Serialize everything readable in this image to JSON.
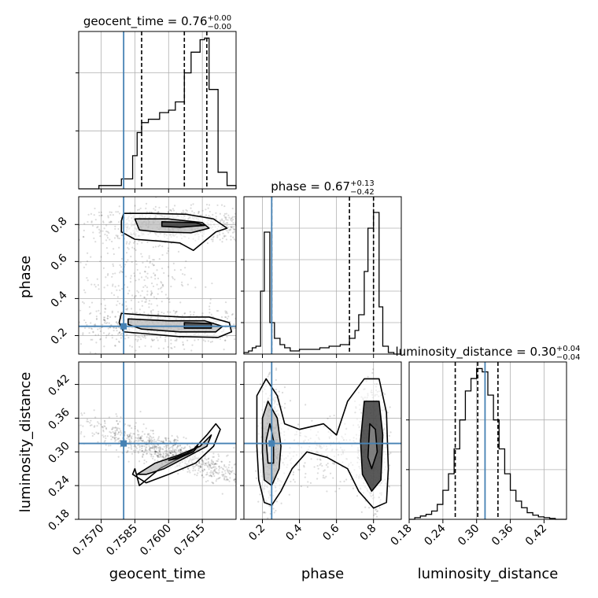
{
  "chart_data": {
    "type": "corner",
    "parameters": [
      "geocent_time",
      "phase",
      "luminosity_distance"
    ],
    "truth": {
      "geocent_time": 0.758,
      "phase": 0.25,
      "luminosity_distance": 0.315
    },
    "colors": {
      "truth": "#4682b4",
      "hist": "#000000",
      "grid": "#b0b0b0",
      "scatter": "#000000"
    },
    "grid": true,
    "marginals": [
      {
        "parameter": "geocent_time",
        "title_prefix": "geocent_time = ",
        "median": "0.76",
        "plus": "+0.00",
        "minus": "−0.00",
        "quantiles": [
          0.7588,
          0.7607,
          0.7617
        ],
        "xlim": [
          0.756,
          0.763
        ],
        "ylim": [
          0,
          190
        ],
        "yticks": [
          70,
          140
        ],
        "bin_edges": [
          0.756,
          0.7569,
          0.7579,
          0.7584,
          0.7586,
          0.7588,
          0.7591,
          0.7596,
          0.76,
          0.7603,
          0.7607,
          0.761,
          0.7614,
          0.7616,
          0.7618,
          0.7622,
          0.7626,
          0.763
        ],
        "counts": [
          0,
          4,
          12,
          40,
          68,
          80,
          84,
          92,
          95,
          105,
          140,
          165,
          180,
          182,
          120,
          20,
          4
        ]
      },
      {
        "parameter": "phase",
        "title_prefix": "phase = ",
        "median": "0.67",
        "plus": "+0.13",
        "minus": "−0.42",
        "quantiles": [
          0.25,
          0.67,
          0.8
        ],
        "xlim": [
          0.1,
          0.95
        ],
        "ylim": [
          0,
          200
        ],
        "yticks": [
          40,
          80,
          120,
          160
        ],
        "bin_edges": [
          0.1,
          0.125,
          0.145,
          0.165,
          0.19,
          0.21,
          0.24,
          0.265,
          0.295,
          0.32,
          0.35,
          0.375,
          0.4,
          0.43,
          0.455,
          0.48,
          0.51,
          0.54,
          0.56,
          0.59,
          0.62,
          0.65,
          0.67,
          0.7,
          0.72,
          0.75,
          0.77,
          0.8,
          0.83,
          0.85,
          0.88,
          0.91,
          0.95
        ],
        "counts": [
          2,
          4,
          8,
          10,
          80,
          155,
          40,
          20,
          12,
          8,
          4,
          4,
          6,
          6,
          6,
          6,
          8,
          8,
          10,
          10,
          12,
          12,
          20,
          30,
          50,
          105,
          160,
          180,
          60,
          10,
          2,
          0
        ]
      },
      {
        "parameter": "luminosity_distance",
        "title_prefix": "luminosity_distance = ",
        "median": "0.30",
        "plus": "+0.04",
        "minus": "−0.04",
        "quantiles": [
          0.262,
          0.302,
          0.338
        ],
        "xlim": [
          0.18,
          0.46
        ],
        "ylim": [
          0,
          190
        ],
        "yticks": [
          60,
          120
        ],
        "bin_edges": [
          0.18,
          0.19,
          0.2,
          0.21,
          0.22,
          0.23,
          0.24,
          0.25,
          0.26,
          0.27,
          0.28,
          0.29,
          0.3,
          0.31,
          0.32,
          0.33,
          0.34,
          0.35,
          0.36,
          0.37,
          0.38,
          0.39,
          0.4,
          0.41,
          0.42,
          0.43,
          0.44,
          0.45,
          0.46
        ],
        "counts": [
          0,
          2,
          4,
          6,
          10,
          18,
          35,
          55,
          85,
          120,
          155,
          170,
          182,
          178,
          150,
          120,
          85,
          55,
          35,
          22,
          14,
          8,
          5,
          3,
          2,
          1,
          0,
          0
        ]
      }
    ],
    "axes": {
      "geocent_time": {
        "label": "geocent_time",
        "lim": [
          0.756,
          0.763
        ],
        "ticks": [
          0.757,
          0.7585,
          0.76,
          0.7615
        ],
        "ticklabels": [
          "0.7570",
          "0.7585",
          "0.7600",
          "0.7615"
        ]
      },
      "phase": {
        "label": "phase",
        "lim": [
          0.1,
          0.95
        ],
        "ticks": [
          0.2,
          0.4,
          0.6,
          0.8
        ],
        "ticklabels": [
          "0.2",
          "0.4",
          "0.6",
          "0.8"
        ]
      },
      "luminosity_distance": {
        "label": "luminosity_distance",
        "lim": [
          0.18,
          0.46
        ],
        "ticks": [
          0.18,
          0.24,
          0.3,
          0.36,
          0.42
        ],
        "ticklabels": [
          "0.18",
          "0.24",
          "0.30",
          "0.36",
          "0.42"
        ]
      }
    },
    "y_axes": {
      "phase": {
        "label": "phase",
        "lim": [
          0.1,
          0.95
        ],
        "ticks": [
          0.2,
          0.4,
          0.6,
          0.8
        ],
        "ticklabels": [
          "0.2",
          "0.4",
          "0.6",
          "0.8"
        ]
      },
      "luminosity_distance": {
        "label": "luminosity_distance",
        "lim": [
          0.18,
          0.46
        ],
        "ticks": [
          0.18,
          0.24,
          0.3,
          0.36,
          0.42
        ],
        "ticklabels": [
          "0.18",
          "0.24",
          "0.30",
          "0.36",
          "0.42"
        ]
      }
    },
    "joint": [
      {
        "x": "geocent_time",
        "y": "phase",
        "blobs": [
          {
            "cx": 0.7604,
            "cy": 0.8,
            "sx": 0.0022,
            "sy": 0.045,
            "w": 800,
            "rot": 0
          },
          {
            "cx": 0.7598,
            "cy": 0.25,
            "sx": 0.0024,
            "sy": 0.05,
            "w": 700,
            "rot": 0
          },
          {
            "cx": 0.7585,
            "cy": 0.52,
            "sx": 0.0012,
            "sy": 0.14,
            "w": 250,
            "rot": 0
          }
        ],
        "contours": [
          [
            [
              0.758,
              0.86
            ],
            [
              0.7592,
              0.86
            ],
            [
              0.7608,
              0.855
            ],
            [
              0.762,
              0.83
            ],
            [
              0.7626,
              0.78
            ],
            [
              0.7621,
              0.76
            ],
            [
              0.7617,
              0.72
            ],
            [
              0.7611,
              0.66
            ],
            [
              0.7605,
              0.7
            ],
            [
              0.7596,
              0.71
            ],
            [
              0.7585,
              0.72
            ],
            [
              0.7579,
              0.76
            ],
            [
              0.7579,
              0.82
            ]
          ],
          [
            [
              0.7585,
              0.83
            ],
            [
              0.76,
              0.83
            ],
            [
              0.7615,
              0.81
            ],
            [
              0.7618,
              0.78
            ],
            [
              0.761,
              0.755
            ],
            [
              0.7595,
              0.76
            ],
            [
              0.7587,
              0.77
            ]
          ],
          [
            [
              0.7597,
              0.815
            ],
            [
              0.7612,
              0.81
            ],
            [
              0.7616,
              0.795
            ],
            [
              0.7605,
              0.785
            ],
            [
              0.7597,
              0.79
            ]
          ],
          [
            [
              0.7579,
              0.32
            ],
            [
              0.759,
              0.31
            ],
            [
              0.7606,
              0.3
            ],
            [
              0.7618,
              0.3
            ],
            [
              0.7627,
              0.27
            ],
            [
              0.7628,
              0.22
            ],
            [
              0.7622,
              0.19
            ],
            [
              0.7604,
              0.195
            ],
            [
              0.759,
              0.21
            ],
            [
              0.758,
              0.22
            ],
            [
              0.7578,
              0.27
            ]
          ],
          [
            [
              0.7582,
              0.29
            ],
            [
              0.76,
              0.28
            ],
            [
              0.7616,
              0.28
            ],
            [
              0.7624,
              0.25
            ],
            [
              0.7621,
              0.22
            ],
            [
              0.7605,
              0.22
            ],
            [
              0.7588,
              0.235
            ],
            [
              0.7582,
              0.26
            ]
          ],
          [
            [
              0.7607,
              0.27
            ],
            [
              0.7619,
              0.265
            ],
            [
              0.7619,
              0.24
            ],
            [
              0.7607,
              0.24
            ]
          ]
        ]
      },
      {
        "x": "geocent_time",
        "y": "luminosity_distance",
        "blobs": [
          {
            "cx": 0.76,
            "cy": 0.3,
            "sx": 0.0014,
            "sy": 0.014,
            "w": 900,
            "rot": -55
          }
        ],
        "contours": [
          [
            [
              0.7587,
              0.24
            ],
            [
              0.7596,
              0.27
            ],
            [
              0.761,
              0.3
            ],
            [
              0.7617,
              0.33
            ],
            [
              0.7621,
              0.35
            ],
            [
              0.7623,
              0.34
            ],
            [
              0.762,
              0.31
            ],
            [
              0.7612,
              0.28
            ],
            [
              0.76,
              0.26
            ],
            [
              0.759,
              0.245
            ],
            [
              0.7584,
              0.26
            ],
            [
              0.7585,
              0.27
            ]
          ],
          [
            [
              0.7586,
              0.26
            ],
            [
              0.7594,
              0.28
            ],
            [
              0.7605,
              0.295
            ],
            [
              0.7614,
              0.31
            ],
            [
              0.7619,
              0.33
            ],
            [
              0.7617,
              0.31
            ],
            [
              0.761,
              0.295
            ],
            [
              0.7598,
              0.27
            ],
            [
              0.759,
              0.26
            ]
          ],
          [
            [
              0.76,
              0.285
            ],
            [
              0.7608,
              0.297
            ],
            [
              0.7613,
              0.31
            ],
            [
              0.7611,
              0.3
            ],
            [
              0.7604,
              0.288
            ]
          ]
        ]
      },
      {
        "x": "phase",
        "y": "luminosity_distance",
        "blobs": [
          {
            "cx": 0.25,
            "cy": 0.31,
            "sx": 0.03,
            "sy": 0.05,
            "w": 600,
            "rot": 0
          },
          {
            "cx": 0.79,
            "cy": 0.31,
            "sx": 0.04,
            "sy": 0.05,
            "w": 700,
            "rot": 0
          },
          {
            "cx": 0.5,
            "cy": 0.3,
            "sx": 0.12,
            "sy": 0.03,
            "w": 200,
            "rot": 0
          }
        ],
        "contours": [
          [
            [
              0.22,
              0.43
            ],
            [
              0.28,
              0.4
            ],
            [
              0.32,
              0.35
            ],
            [
              0.4,
              0.34
            ],
            [
              0.53,
              0.35
            ],
            [
              0.6,
              0.33
            ],
            [
              0.66,
              0.39
            ],
            [
              0.75,
              0.43
            ],
            [
              0.83,
              0.43
            ],
            [
              0.87,
              0.37
            ],
            [
              0.88,
              0.27
            ],
            [
              0.87,
              0.21
            ],
            [
              0.8,
              0.2
            ],
            [
              0.72,
              0.23
            ],
            [
              0.66,
              0.27
            ],
            [
              0.55,
              0.29
            ],
            [
              0.44,
              0.3
            ],
            [
              0.36,
              0.27
            ],
            [
              0.3,
              0.23
            ],
            [
              0.25,
              0.205
            ],
            [
              0.21,
              0.21
            ],
            [
              0.18,
              0.25
            ],
            [
              0.17,
              0.31
            ],
            [
              0.17,
              0.4
            ]
          ],
          [
            [
              0.23,
              0.39
            ],
            [
              0.28,
              0.36
            ],
            [
              0.3,
              0.31
            ],
            [
              0.29,
              0.27
            ],
            [
              0.25,
              0.24
            ],
            [
              0.21,
              0.25
            ],
            [
              0.2,
              0.3
            ],
            [
              0.2,
              0.36
            ]
          ],
          [
            [
              0.75,
              0.39
            ],
            [
              0.83,
              0.39
            ],
            [
              0.85,
              0.33
            ],
            [
              0.84,
              0.25
            ],
            [
              0.79,
              0.23
            ],
            [
              0.74,
              0.26
            ],
            [
              0.73,
              0.32
            ]
          ],
          [
            [
              0.24,
              0.35
            ],
            [
              0.26,
              0.32
            ],
            [
              0.26,
              0.28
            ],
            [
              0.23,
              0.28
            ],
            [
              0.22,
              0.32
            ]
          ],
          [
            [
              0.78,
              0.35
            ],
            [
              0.81,
              0.34
            ],
            [
              0.82,
              0.3
            ],
            [
              0.79,
              0.27
            ],
            [
              0.77,
              0.29
            ]
          ]
        ]
      }
    ]
  }
}
